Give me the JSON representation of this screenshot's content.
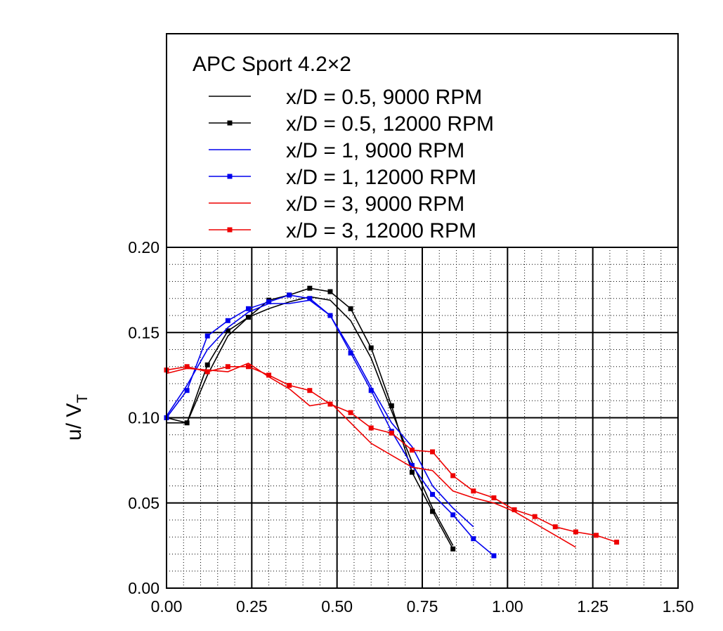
{
  "chart_data": {
    "type": "line",
    "title": "",
    "xlabel": "",
    "ylabel": "u/ V",
    "ylabel_sub": "T",
    "xlim": [
      0,
      1.5
    ],
    "ylim": [
      0,
      0.2
    ],
    "grid": true,
    "x_ticks": [
      "0.00",
      "0.25",
      "0.50",
      "0.75",
      "1.00",
      "1.25",
      "1.50"
    ],
    "y_ticks": [
      "0.00",
      "0.05",
      "0.10",
      "0.15",
      "0.20"
    ],
    "legend": {
      "title": "APC Sport 4.2×2",
      "placement": "top"
    },
    "series": [
      {
        "name": "x/D = 0.5, 9000 RPM",
        "color": "#000000",
        "marker": false,
        "x": [
          0.0,
          0.06,
          0.12,
          0.18,
          0.24,
          0.3,
          0.36,
          0.42,
          0.48,
          0.54,
          0.6,
          0.66,
          0.72,
          0.78,
          0.84
        ],
        "y": [
          0.097,
          0.097,
          0.125,
          0.148,
          0.159,
          0.164,
          0.168,
          0.171,
          0.169,
          0.157,
          0.135,
          0.104,
          0.074,
          0.047,
          0.025
        ]
      },
      {
        "name": "x/D = 0.5, 12000 RPM",
        "color": "#000000",
        "marker": true,
        "x": [
          0.0,
          0.06,
          0.12,
          0.18,
          0.24,
          0.3,
          0.36,
          0.42,
          0.48,
          0.54,
          0.6,
          0.66,
          0.72,
          0.78,
          0.84
        ],
        "y": [
          0.1,
          0.097,
          0.131,
          0.151,
          0.159,
          0.169,
          0.172,
          0.176,
          0.174,
          0.164,
          0.141,
          0.107,
          0.068,
          0.045,
          0.023
        ]
      },
      {
        "name": "x/D = 1, 9000 RPM",
        "color": "#0000ee",
        "marker": false,
        "x": [
          0.0,
          0.06,
          0.12,
          0.18,
          0.24,
          0.3,
          0.36,
          0.42,
          0.48,
          0.54,
          0.6,
          0.66,
          0.72,
          0.78,
          0.84,
          0.9
        ],
        "y": [
          0.101,
          0.119,
          0.14,
          0.153,
          0.162,
          0.167,
          0.167,
          0.169,
          0.16,
          0.14,
          0.118,
          0.097,
          0.083,
          0.06,
          0.047,
          0.036
        ]
      },
      {
        "name": "x/D = 1, 12000 RPM",
        "color": "#0000ee",
        "marker": true,
        "x": [
          0.0,
          0.06,
          0.12,
          0.18,
          0.24,
          0.3,
          0.36,
          0.42,
          0.48,
          0.54,
          0.6,
          0.66,
          0.72,
          0.78,
          0.84,
          0.9,
          0.96
        ],
        "y": [
          0.1,
          0.116,
          0.148,
          0.157,
          0.164,
          0.168,
          0.172,
          0.17,
          0.16,
          0.138,
          0.116,
          0.092,
          0.072,
          0.055,
          0.043,
          0.029,
          0.019
        ]
      },
      {
        "name": "x/D = 3, 9000 RPM",
        "color": "#ee0000",
        "marker": false,
        "x": [
          0.0,
          0.06,
          0.12,
          0.18,
          0.24,
          0.3,
          0.36,
          0.42,
          0.48,
          0.54,
          0.6,
          0.66,
          0.72,
          0.78,
          0.84,
          0.9,
          0.96,
          1.02,
          1.08,
          1.14,
          1.2
        ],
        "y": [
          0.126,
          0.129,
          0.128,
          0.127,
          0.132,
          0.124,
          0.117,
          0.107,
          0.109,
          0.097,
          0.085,
          0.078,
          0.071,
          0.069,
          0.057,
          0.053,
          0.05,
          0.045,
          0.038,
          0.031,
          0.024
        ]
      },
      {
        "name": "x/D = 3, 12000 RPM",
        "color": "#ee0000",
        "marker": true,
        "x": [
          0.0,
          0.06,
          0.12,
          0.18,
          0.24,
          0.3,
          0.36,
          0.42,
          0.48,
          0.54,
          0.6,
          0.66,
          0.72,
          0.78,
          0.84,
          0.9,
          0.96,
          1.02,
          1.08,
          1.14,
          1.2,
          1.26,
          1.32
        ],
        "y": [
          0.128,
          0.13,
          0.127,
          0.13,
          0.13,
          0.125,
          0.119,
          0.116,
          0.108,
          0.103,
          0.094,
          0.091,
          0.081,
          0.08,
          0.066,
          0.057,
          0.053,
          0.046,
          0.042,
          0.036,
          0.033,
          0.031,
          0.027
        ]
      }
    ]
  }
}
